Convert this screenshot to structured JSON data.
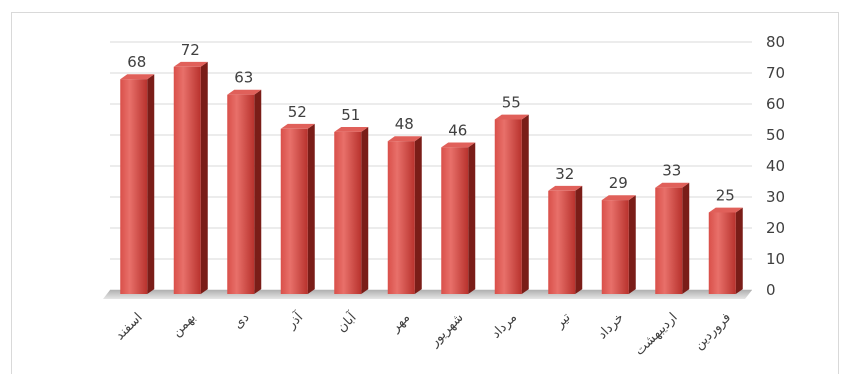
{
  "chart_data": {
    "type": "bar",
    "categories": [
      "اسفند",
      "بهمن",
      "دی",
      "آذر",
      "آبان",
      "مهر",
      "شهریور",
      "مرداد",
      "تیر",
      "خرداد",
      "اردیبهشت",
      "فروردین"
    ],
    "values": [
      68,
      72,
      63,
      52,
      51,
      48,
      46,
      55,
      32,
      29,
      33,
      25
    ],
    "title": "",
    "xlabel": "",
    "ylabel": "",
    "ylim": [
      0,
      80
    ],
    "yticks": [
      0,
      10,
      20,
      30,
      40,
      50,
      60,
      70,
      80
    ],
    "y_axis_side": "right",
    "grid": true,
    "legend": "none",
    "data_labels": true,
    "bar_color": "#c0392b",
    "bar_style": "3d-column"
  }
}
